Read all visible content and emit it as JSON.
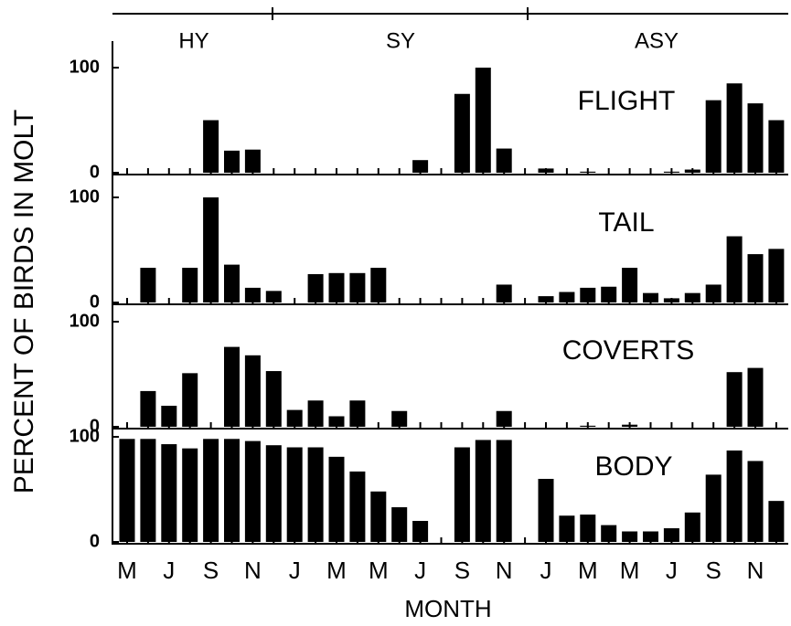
{
  "chart_data": {
    "type": "bar",
    "color": "#000000",
    "x_label": "MONTH",
    "y_label": "PERCENT OF BIRDS IN MOLT",
    "age_classes": [
      "HY",
      "SY",
      "ASY"
    ],
    "categories": [
      "M",
      null,
      "J",
      null,
      "S",
      null,
      "N",
      null,
      "J",
      null,
      "M",
      null,
      "M",
      null,
      "J",
      null,
      "S",
      null,
      "N",
      null,
      "J",
      null,
      "M",
      null,
      "M",
      null,
      "J",
      null,
      "S",
      null,
      "N",
      null
    ],
    "panels": [
      {
        "title": "FLIGHT",
        "ylim": [
          0,
          125
        ],
        "yticks": [
          0,
          100
        ],
        "values": [
          0,
          0,
          0,
          0,
          50,
          21,
          22,
          0,
          0,
          0,
          0,
          0,
          0,
          0,
          12,
          0,
          75,
          100,
          23,
          0,
          4,
          0,
          1,
          0,
          0,
          0,
          1,
          3,
          69,
          85,
          66,
          50
        ]
      },
      {
        "title": "TAIL",
        "ylim": [
          0,
          125
        ],
        "yticks": [
          0,
          100
        ],
        "values": [
          0,
          33,
          0,
          33,
          100,
          36,
          14,
          11,
          0,
          27,
          28,
          28,
          33,
          0,
          0,
          0,
          0,
          0,
          17,
          0,
          6,
          10,
          14,
          15,
          33,
          9,
          4,
          9,
          17,
          63,
          46,
          51
        ]
      },
      {
        "title": "COVERTS",
        "ylim": [
          0,
          125
        ],
        "yticks": [
          0,
          100
        ],
        "values": [
          0,
          34,
          20,
          51,
          0,
          76,
          68,
          53,
          16,
          25,
          10,
          25,
          0,
          15,
          0,
          0,
          0,
          0,
          15,
          0,
          0,
          0,
          1,
          0,
          2,
          0,
          0,
          0,
          0,
          52,
          56,
          0
        ]
      },
      {
        "title": "BODY",
        "ylim": [
          0,
          125
        ],
        "yticks": [
          0,
          100
        ],
        "values": [
          98,
          98,
          93,
          89,
          98,
          98,
          96,
          92,
          90,
          90,
          81,
          67,
          48,
          33,
          20,
          0,
          90,
          97,
          97,
          0,
          60,
          25,
          26,
          16,
          10,
          10,
          13,
          28,
          64,
          87,
          77,
          39
        ]
      }
    ]
  }
}
